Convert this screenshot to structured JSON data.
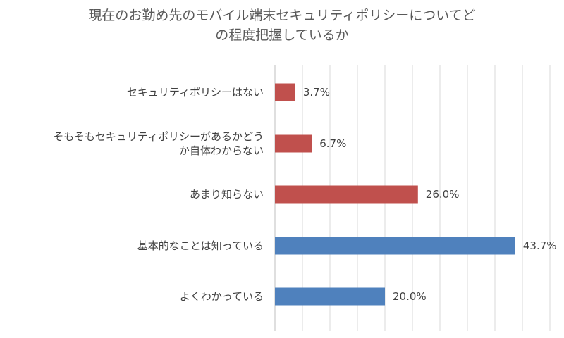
{
  "chart_data": {
    "type": "bar",
    "orientation": "horizontal",
    "title_lines": [
      "現在のお勤め先のモバイル端末セキュリティポリシーについてど",
      "の程度把握しているか"
    ],
    "categories": [
      [
        "セキュリティポリシーはない"
      ],
      [
        "そもそもセキュリティポリシーがあるかどう",
        "か自体わからない"
      ],
      [
        "あまり知らない"
      ],
      [
        "基本的なことは知っている"
      ],
      [
        "よくわかっている"
      ]
    ],
    "values": [
      3.7,
      6.7,
      26.0,
      43.7,
      20.0
    ],
    "value_labels": [
      "3.7%",
      "6.7%",
      "26.0%",
      "43.7%",
      "20.0%"
    ],
    "bar_colors": [
      "#c0504d",
      "#c0504d",
      "#c0504d",
      "#4f81bd",
      "#4f81bd"
    ],
    "xlim": [
      0,
      50
    ],
    "grid": true,
    "gridline_color": "#d9d9d9",
    "axis_line_color": "#bfbfbf",
    "legend": false
  }
}
